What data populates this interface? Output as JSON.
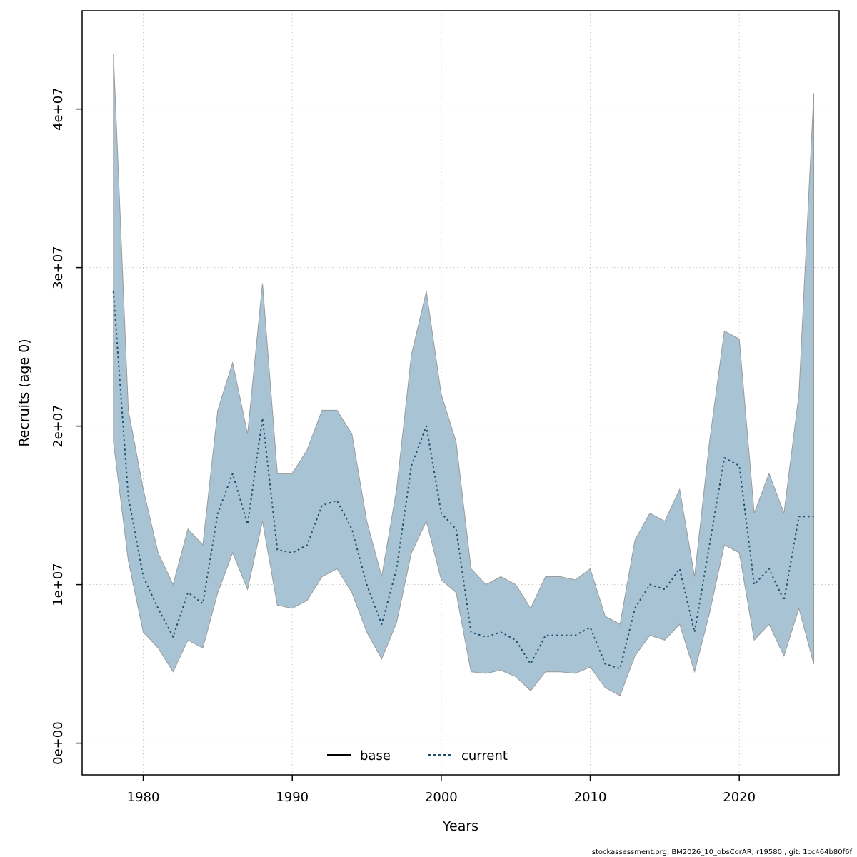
{
  "footer": {
    "text": "stockassessment.org, BM2026_10_obsCorAR, r19580 , git: 1cc464b80f6f"
  },
  "chart_data": {
    "type": "line",
    "title": "",
    "xlabel": "Years",
    "ylabel": "Recruits (age 0)",
    "xlim": [
      1975.9,
      2026.7
    ],
    "ylim": [
      -2000000.0,
      46200000.0
    ],
    "grid": true,
    "x_ticks": [
      1980,
      1990,
      2000,
      2010,
      2020
    ],
    "y_ticks": [
      {
        "value": 0,
        "label": "0e+00"
      },
      {
        "value": 10000000.0,
        "label": "1e+07"
      },
      {
        "value": 20000000.0,
        "label": "2e+07"
      },
      {
        "value": 30000000.0,
        "label": "3e+07"
      },
      {
        "value": 40000000.0,
        "label": "4e+07"
      }
    ],
    "legend": {
      "position": "bottom-center",
      "entries": [
        {
          "label": "base",
          "style": "solid",
          "color": "#000000"
        },
        {
          "label": "current",
          "style": "dotted",
          "color": "#1c4f6e"
        }
      ]
    },
    "x": [
      1978,
      1979,
      1980,
      1981,
      1982,
      1983,
      1984,
      1985,
      1986,
      1987,
      1988,
      1989,
      1990,
      1991,
      1992,
      1993,
      1994,
      1995,
      1996,
      1997,
      1998,
      1999,
      2000,
      2001,
      2002,
      2003,
      2004,
      2005,
      2006,
      2007,
      2008,
      2009,
      2010,
      2011,
      2012,
      2013,
      2014,
      2015,
      2016,
      2017,
      2018,
      2019,
      2020,
      2021,
      2022,
      2023,
      2024,
      2025
    ],
    "series": [
      {
        "name": "current",
        "style": "dotted",
        "color": "#1c4f6e",
        "values": [
          28500000.0,
          15500000.0,
          10500000.0,
          8500000.0,
          6700000.0,
          9500000.0,
          8800000.0,
          14500000.0,
          17000000.0,
          13800000.0,
          20500000.0,
          12200000.0,
          12000000.0,
          12500000.0,
          15000000.0,
          15300000.0,
          13500000.0,
          10000000.0,
          7500000.0,
          11000000.0,
          17500000.0,
          20000000.0,
          14500000.0,
          13500000.0,
          7000000.0,
          6700000.0,
          7000000.0,
          6500000.0,
          5000000.0,
          6800000.0,
          6800000.0,
          6800000.0,
          7300000.0,
          5000000.0,
          4700000.0,
          8500000.0,
          10000000.0,
          9700000.0,
          11000000.0,
          7000000.0,
          12500000.0,
          18000000.0,
          17500000.0,
          10000000.0,
          11000000.0,
          9000000.0,
          14300000.0,
          14300000.0
        ]
      }
    ],
    "band": {
      "name": "current-confidence-interval",
      "fill": "#a8c4d4",
      "edge": "#9a9a9a",
      "upper": [
        43500000.0,
        21000000.0,
        16000000.0,
        12000000.0,
        10000000.0,
        13500000.0,
        12500000.0,
        21000000.0,
        24000000.0,
        19500000.0,
        29000000.0,
        17000000.0,
        17000000.0,
        18500000.0,
        21000000.0,
        21000000.0,
        19500000.0,
        14000000.0,
        10500000.0,
        16000000.0,
        24500000.0,
        28500000.0,
        22000000.0,
        19000000.0,
        11000000.0,
        10000000.0,
        10500000.0,
        10000000.0,
        8500000.0,
        10500000.0,
        10500000.0,
        10300000.0,
        11000000.0,
        8000000.0,
        7500000.0,
        12800000.0,
        14500000.0,
        14000000.0,
        16000000.0,
        10500000.0,
        19000000.0,
        26000000.0,
        25500000.0,
        14500000.0,
        17000000.0,
        14500000.0,
        22000000.0,
        41000000.0
      ],
      "lower": [
        19000000.0,
        11500000.0,
        7000000.0,
        6000000.0,
        4500000.0,
        6500000.0,
        6000000.0,
        9500000.0,
        12000000.0,
        9700000.0,
        14000000.0,
        8700000.0,
        8500000.0,
        9000000.0,
        10500000.0,
        11000000.0,
        9500000.0,
        7000000.0,
        5300000.0,
        7600000.0,
        12000000.0,
        14000000.0,
        10300000.0,
        9500000.0,
        4500000.0,
        4400000.0,
        4600000.0,
        4200000.0,
        3300000.0,
        4500000.0,
        4500000.0,
        4400000.0,
        4800000.0,
        3500000.0,
        3000000.0,
        5500000.0,
        6800000.0,
        6500000.0,
        7500000.0,
        4500000.0,
        8200000.0,
        12500000.0,
        12000000.0,
        6500000.0,
        7500000.0,
        5500000.0,
        8500000.0,
        5000000.0
      ]
    },
    "grid_color": "#c8c8c8",
    "frame_color": "#000000"
  }
}
